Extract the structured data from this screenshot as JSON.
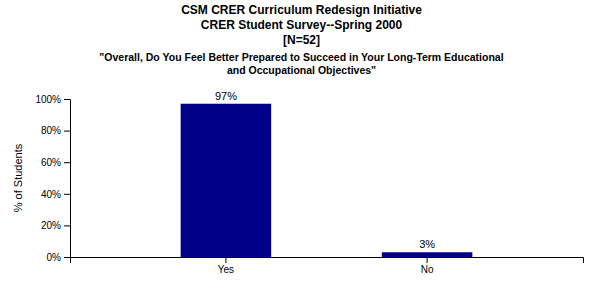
{
  "chart_data": {
    "type": "bar",
    "title": [
      "CSM CRER Curriculum Redesign Initiative",
      "CRER Student Survey--Spring 2000",
      "[N=52]"
    ],
    "subtitle": [
      "\"Overall, Do You Feel Better Prepared to Succeed in Your Long-Term Educational",
      "and Occupational Objectives\""
    ],
    "categories": [
      "Yes",
      "No"
    ],
    "values": [
      97,
      3
    ],
    "value_labels": [
      "97%",
      "3%"
    ],
    "color": "#00008B",
    "y_label": "% of Students",
    "ylim": [
      0,
      100
    ],
    "yticks": [
      {
        "value": 0,
        "label": "0%"
      },
      {
        "value": 20,
        "label": "20%"
      },
      {
        "value": 40,
        "label": "40%"
      },
      {
        "value": 60,
        "label": "60%"
      },
      {
        "value": 80,
        "label": "80%"
      },
      {
        "value": 100,
        "label": "100%"
      }
    ],
    "grid": false,
    "data_labels": true
  }
}
